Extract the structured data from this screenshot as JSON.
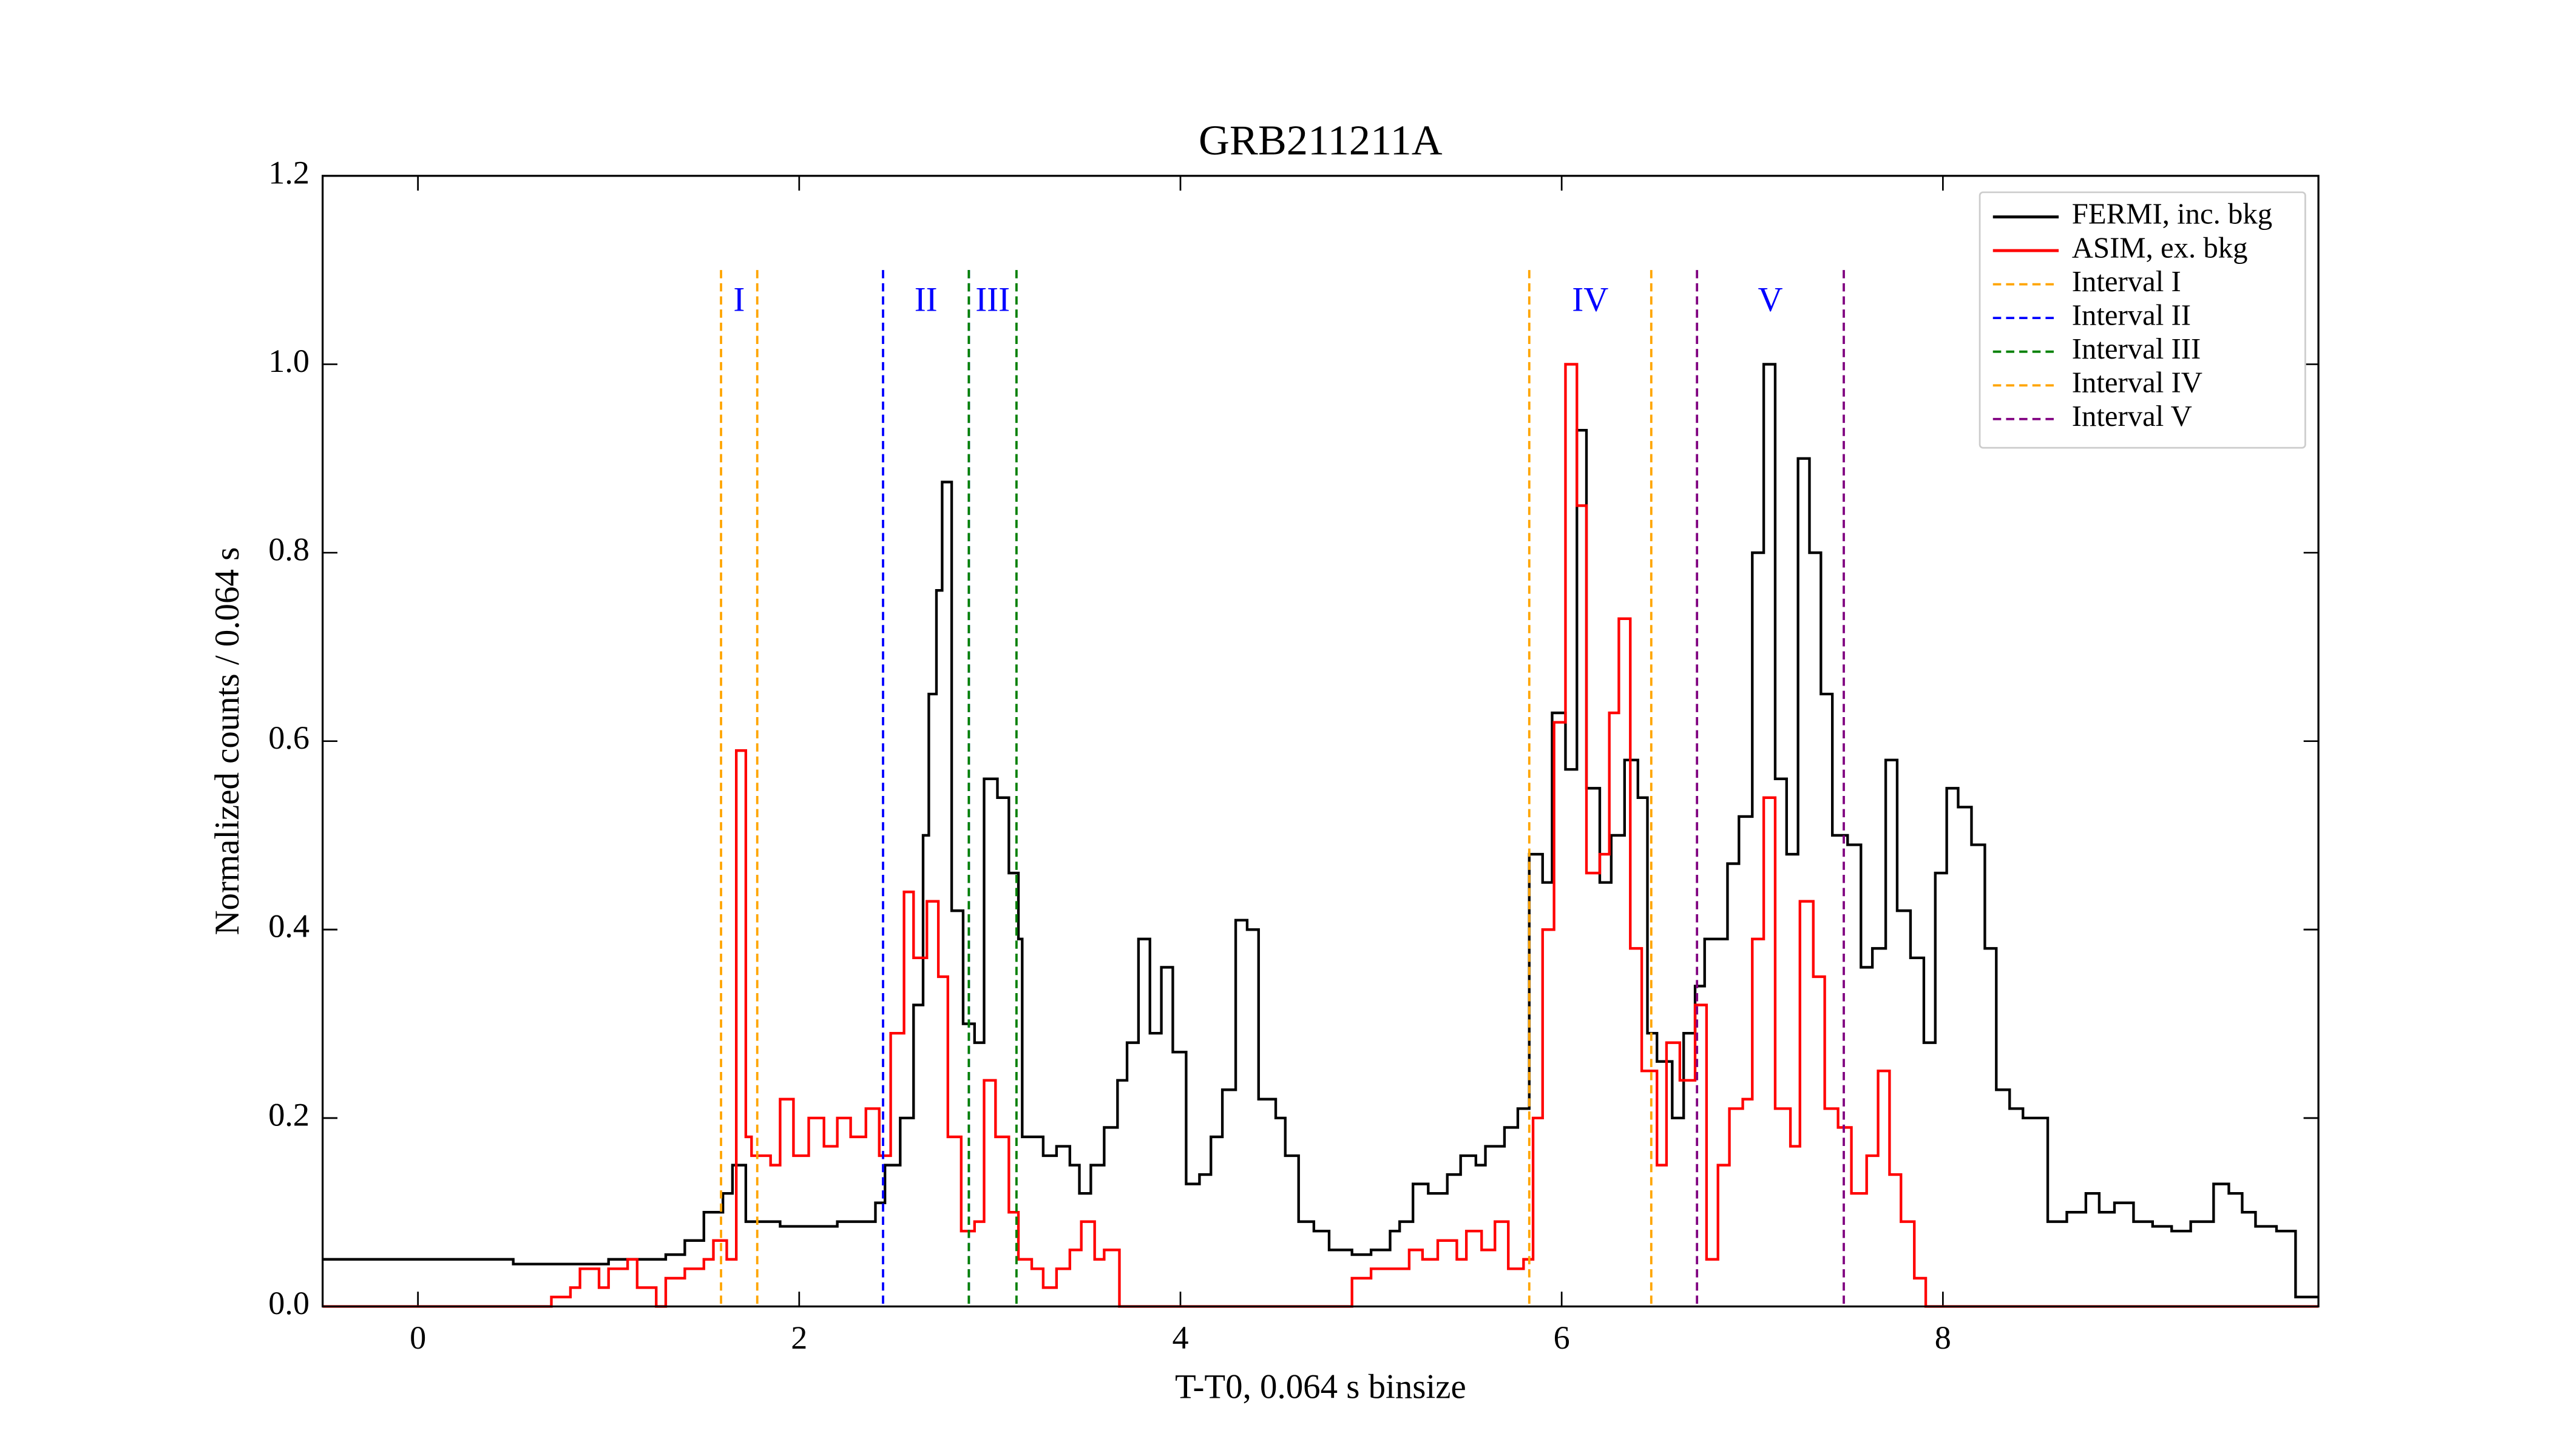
{
  "chart_data": {
    "type": "step",
    "title": "GRB211211A",
    "x_label": "T-T0, 0.064 s binsize",
    "y_label": "Normalized counts / 0.064 s",
    "xlim": [
      -0.5,
      9.97
    ],
    "ylim": [
      0.0,
      1.2
    ],
    "xticks": [
      0,
      2,
      4,
      6,
      8
    ],
    "yticks": [
      {
        "value": 0,
        "label": "0.0"
      },
      0.2,
      0.4,
      0.6,
      0.8,
      {
        "value": 1,
        "label": "1.0"
      },
      0.2,
      0.4,
      {
        "value": 1.2,
        "label": "1.2"
      }
    ],
    "legend": "upper right",
    "series": [
      {
        "name": "FERMI, inc. bkg",
        "color": "#000000",
        "x": [
          -0.5,
          0,
          0.5,
          1.0,
          1.3,
          1.4,
          1.5,
          1.6,
          1.65,
          1.72,
          1.9,
          2.2,
          2.4,
          2.45,
          2.53,
          2.6,
          2.65,
          2.68,
          2.72,
          2.75,
          2.8,
          2.86,
          2.92,
          2.97,
          3.04,
          3.1,
          3.15,
          3.17,
          3.28,
          3.35,
          3.42,
          3.47,
          3.53,
          3.6,
          3.67,
          3.72,
          3.78,
          3.84,
          3.9,
          3.96,
          4.03,
          4.1,
          4.16,
          4.22,
          4.29,
          4.35,
          4.41,
          4.5,
          4.55,
          4.62,
          4.7,
          4.78,
          4.9,
          5.0,
          5.1,
          5.15,
          5.22,
          5.3,
          5.4,
          5.47,
          5.55,
          5.6,
          5.7,
          5.77,
          5.83,
          5.9,
          5.95,
          6.02,
          6.08,
          6.13,
          6.2,
          6.26,
          6.33,
          6.4,
          6.45,
          6.5,
          6.58,
          6.64,
          6.7,
          6.75,
          6.87,
          6.93,
          7.0,
          7.06,
          7.12,
          7.18,
          7.24,
          7.3,
          7.36,
          7.42,
          7.5,
          7.57,
          7.63,
          7.7,
          7.76,
          7.83,
          7.9,
          7.96,
          8.02,
          8.08,
          8.15,
          8.22,
          8.28,
          8.35,
          8.42,
          8.55,
          8.65,
          8.75,
          8.82,
          8.9,
          9.0,
          9.1,
          9.2,
          9.3,
          9.42,
          9.5,
          9.57,
          9.64,
          9.75,
          9.85
        ],
        "values": [
          0.05,
          0.05,
          0.045,
          0.05,
          0.055,
          0.07,
          0.1,
          0.12,
          0.15,
          0.09,
          0.085,
          0.09,
          0.11,
          0.15,
          0.2,
          0.32,
          0.5,
          0.65,
          0.76,
          0.875,
          0.42,
          0.3,
          0.28,
          0.56,
          0.54,
          0.46,
          0.39,
          0.18,
          0.16,
          0.17,
          0.15,
          0.12,
          0.15,
          0.19,
          0.24,
          0.28,
          0.39,
          0.29,
          0.36,
          0.27,
          0.13,
          0.14,
          0.18,
          0.23,
          0.41,
          0.4,
          0.22,
          0.2,
          0.16,
          0.09,
          0.08,
          0.06,
          0.055,
          0.06,
          0.08,
          0.09,
          0.13,
          0.12,
          0.14,
          0.16,
          0.15,
          0.17,
          0.19,
          0.21,
          0.48,
          0.45,
          0.63,
          0.57,
          0.93,
          0.55,
          0.45,
          0.5,
          0.58,
          0.54,
          0.29,
          0.26,
          0.2,
          0.29,
          0.34,
          0.39,
          0.47,
          0.52,
          0.8,
          1.0,
          0.56,
          0.48,
          0.9,
          0.8,
          0.65,
          0.5,
          0.49,
          0.36,
          0.38,
          0.58,
          0.42,
          0.37,
          0.28,
          0.46,
          0.55,
          0.53,
          0.49,
          0.38,
          0.23,
          0.21,
          0.2,
          0.09,
          0.1,
          0.12,
          0.1,
          0.11,
          0.09,
          0.085,
          0.08,
          0.09,
          0.13,
          0.12,
          0.1,
          0.085,
          0.08,
          0.01
        ]
      },
      {
        "name": "ASIM, ex. bkg",
        "color": "#ff0000",
        "x": [
          -0.5,
          0.7,
          0.8,
          0.85,
          0.95,
          1.0,
          1.1,
          1.15,
          1.25,
          1.3,
          1.4,
          1.5,
          1.55,
          1.62,
          1.67,
          1.72,
          1.75,
          1.85,
          1.9,
          1.97,
          2.05,
          2.13,
          2.2,
          2.27,
          2.35,
          2.42,
          2.48,
          2.55,
          2.6,
          2.67,
          2.73,
          2.78,
          2.85,
          2.92,
          2.97,
          3.03,
          3.1,
          3.15,
          3.22,
          3.28,
          3.35,
          3.42,
          3.48,
          3.55,
          3.6,
          3.68,
          4.9,
          5.0,
          5.1,
          5.2,
          5.27,
          5.35,
          5.45,
          5.5,
          5.58,
          5.65,
          5.72,
          5.8,
          5.85,
          5.9,
          5.96,
          6.02,
          6.08,
          6.13,
          6.2,
          6.25,
          6.3,
          6.36,
          6.42,
          6.5,
          6.55,
          6.62,
          6.7,
          6.76,
          6.82,
          6.88,
          6.95,
          7.0,
          7.06,
          7.12,
          7.2,
          7.25,
          7.32,
          7.38,
          7.45,
          7.52,
          7.6,
          7.66,
          7.72,
          7.78,
          7.85,
          7.91
        ],
        "values": [
          0.0,
          0.01,
          0.02,
          0.04,
          0.02,
          0.04,
          0.05,
          0.02,
          0.0,
          0.03,
          0.04,
          0.05,
          0.07,
          0.05,
          0.59,
          0.18,
          0.16,
          0.15,
          0.22,
          0.16,
          0.2,
          0.17,
          0.2,
          0.18,
          0.21,
          0.16,
          0.29,
          0.44,
          0.37,
          0.43,
          0.35,
          0.18,
          0.08,
          0.09,
          0.24,
          0.18,
          0.1,
          0.05,
          0.04,
          0.02,
          0.04,
          0.06,
          0.09,
          0.05,
          0.06,
          0.0,
          0.03,
          0.04,
          0.04,
          0.06,
          0.05,
          0.07,
          0.05,
          0.08,
          0.06,
          0.09,
          0.04,
          0.05,
          0.2,
          0.4,
          0.62,
          1.0,
          0.85,
          0.46,
          0.48,
          0.63,
          0.73,
          0.38,
          0.25,
          0.15,
          0.28,
          0.24,
          0.32,
          0.05,
          0.15,
          0.21,
          0.22,
          0.39,
          0.54,
          0.21,
          0.17,
          0.43,
          0.35,
          0.21,
          0.19,
          0.12,
          0.16,
          0.25,
          0.14,
          0.09,
          0.03,
          0.0
        ]
      }
    ],
    "intervals": [
      {
        "name": "Interval I",
        "label": "I",
        "color": "#ffa500",
        "bounds": [
          1.59,
          1.78
        ]
      },
      {
        "name": "Interval II",
        "label": "II",
        "color": "#0000ff",
        "bounds": [
          2.44,
          2.89
        ]
      },
      {
        "name": "Interval III",
        "label": "III",
        "color": "#008000",
        "bounds": [
          2.89,
          3.14
        ]
      },
      {
        "name": "Interval IV",
        "label": "IV",
        "color": "#ffa500",
        "bounds": [
          5.83,
          6.47
        ]
      },
      {
        "name": "Interval V",
        "label": "V",
        "color": "#800080",
        "bounds": [
          6.71,
          7.48
        ]
      }
    ]
  }
}
